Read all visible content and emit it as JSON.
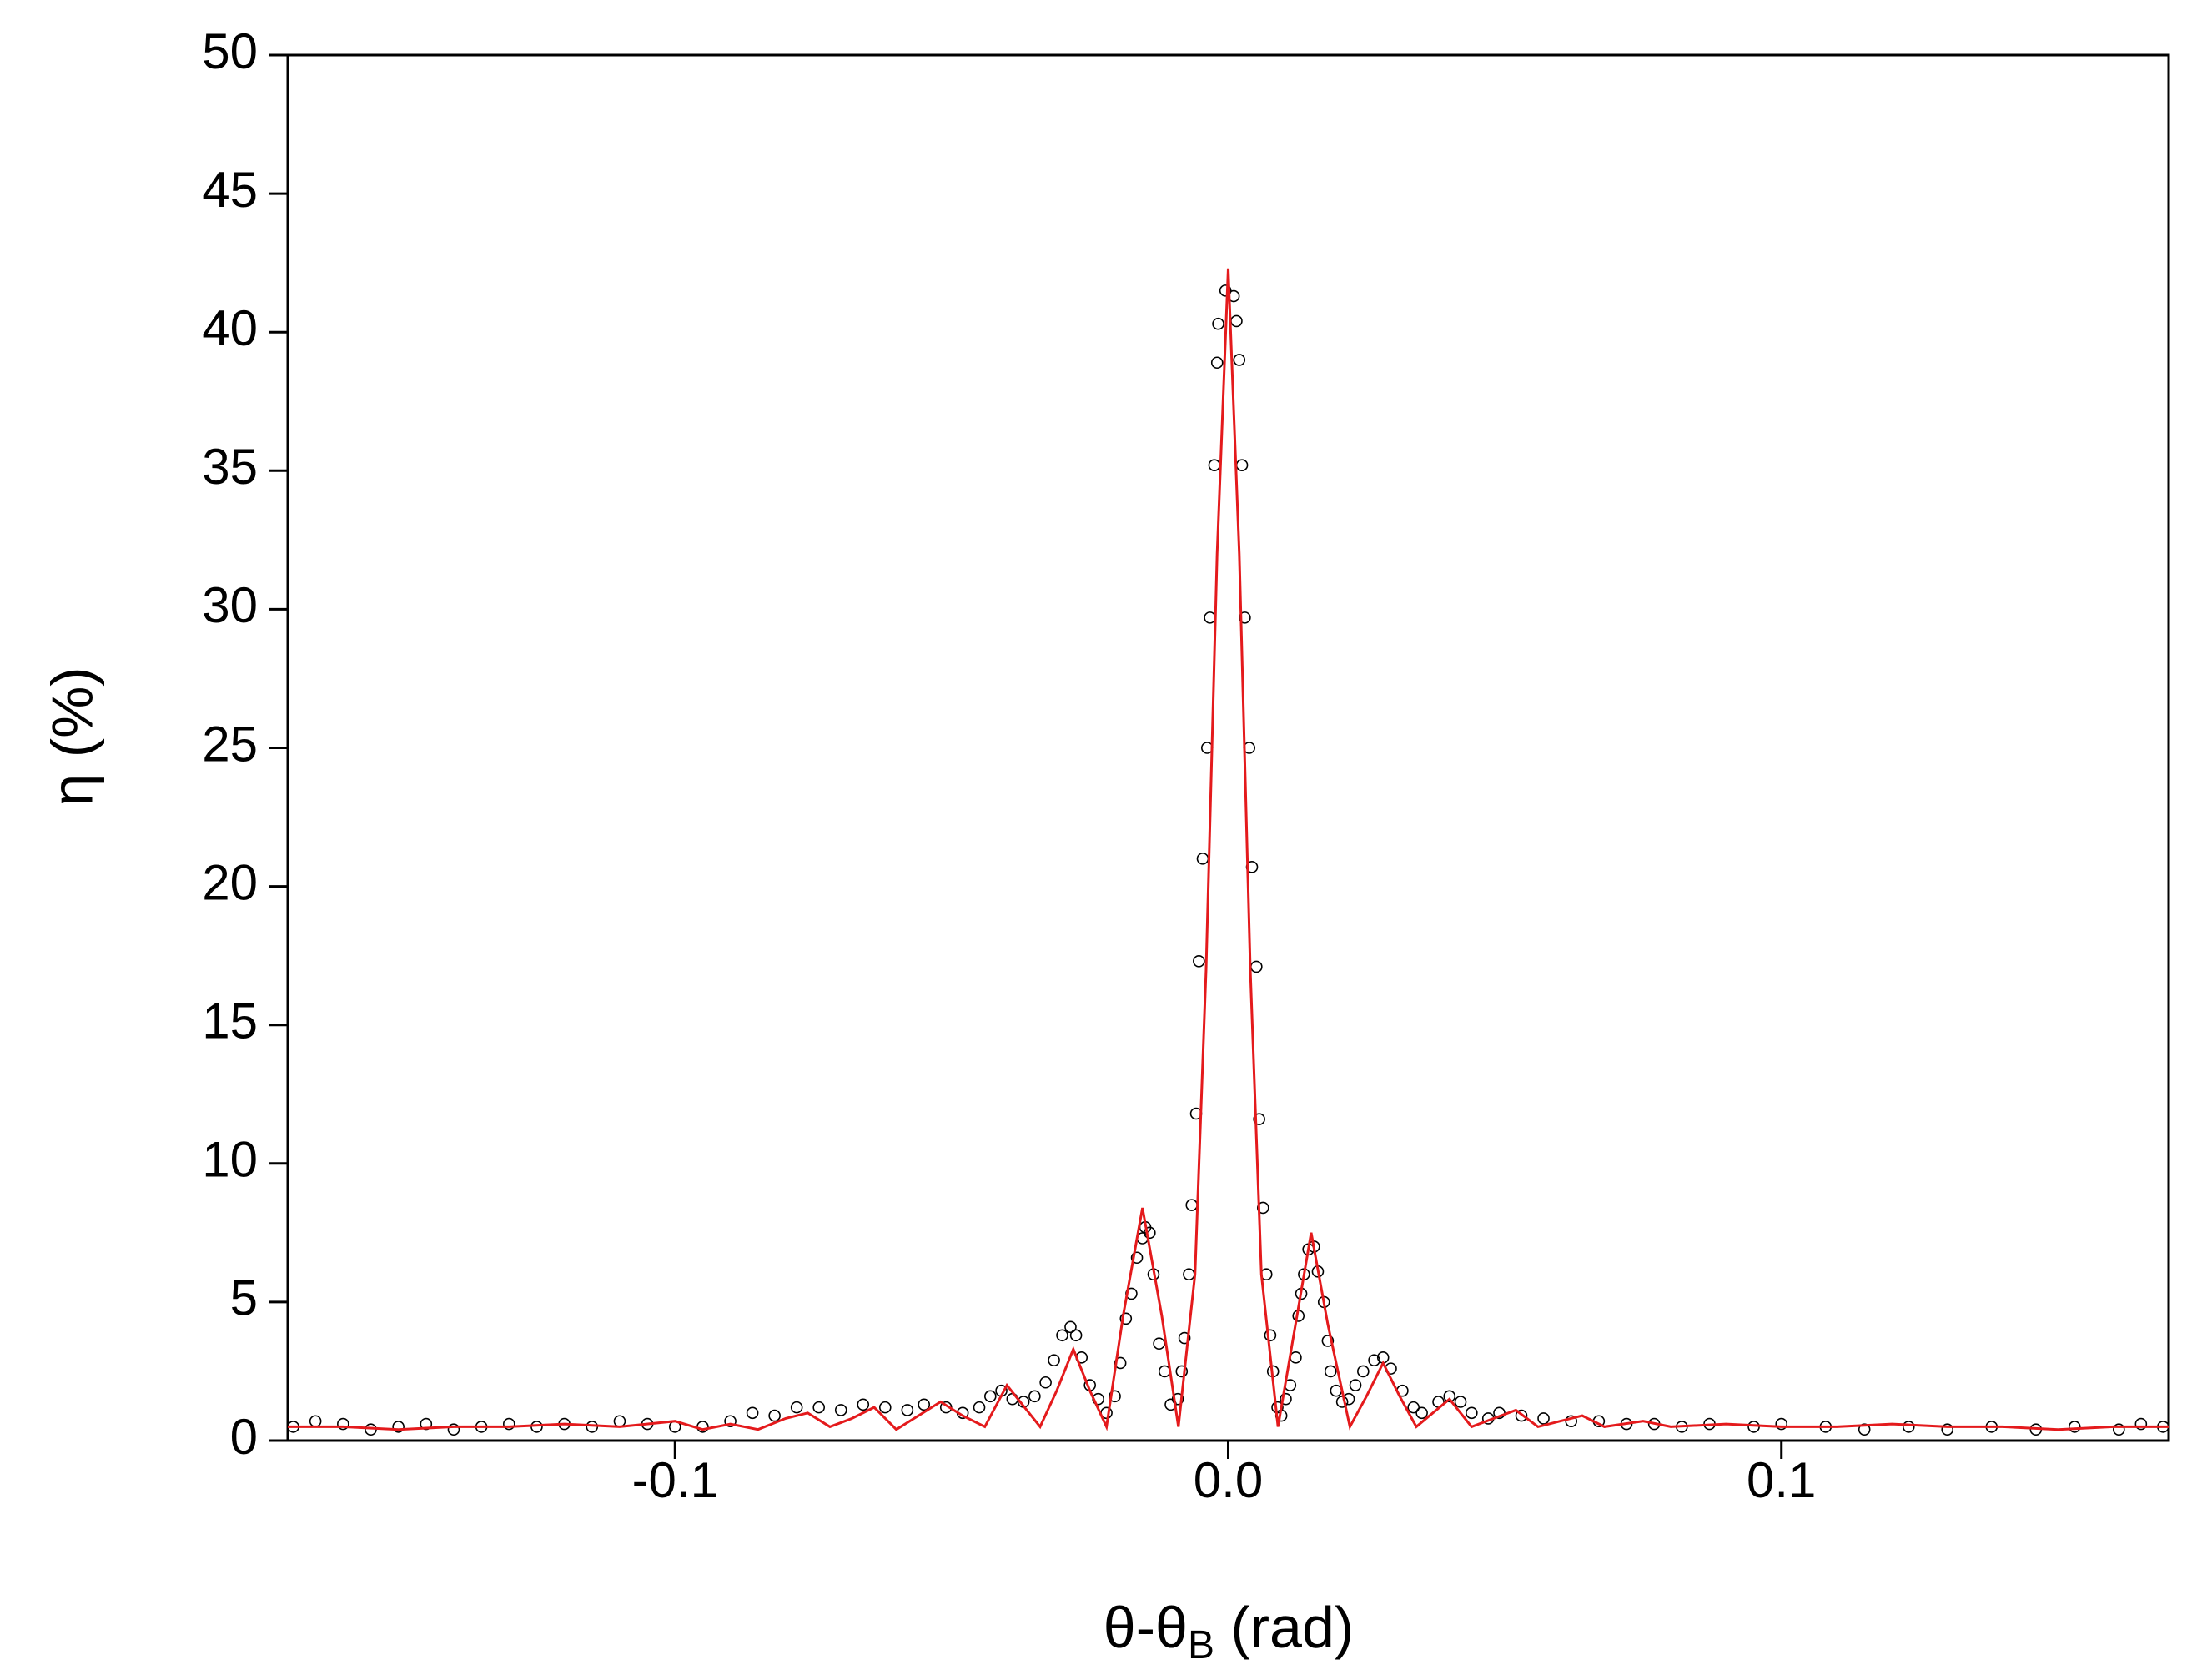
{
  "chart_data": {
    "type": "scatter",
    "xlabel": [
      "θ-θ",
      "B",
      " (rad)"
    ],
    "ylabel": "η (%)",
    "xlim": [
      -0.17,
      0.17
    ],
    "ylim": [
      0,
      50
    ],
    "xticks": [
      {
        "value": -0.1,
        "label": "-0.1"
      },
      {
        "value": 0,
        "label": "0.0"
      },
      {
        "value": 0.1,
        "label": "0.1"
      }
    ],
    "yticks": [
      0,
      5,
      10,
      15,
      20,
      25,
      30,
      35,
      40,
      45,
      50
    ],
    "series": [
      {
        "type": "scatter",
        "color": "#000000",
        "x": [
          -0.169,
          -0.165,
          -0.16,
          -0.155,
          -0.15,
          -0.145,
          -0.14,
          -0.135,
          -0.13,
          -0.125,
          -0.12,
          -0.115,
          -0.11,
          -0.105,
          -0.1,
          -0.095,
          -0.09,
          -0.086,
          -0.082,
          -0.078,
          -0.074,
          -0.07,
          -0.066,
          -0.062,
          -0.058,
          -0.055,
          -0.051,
          -0.048,
          -0.045,
          -0.043,
          -0.041,
          -0.039,
          -0.037,
          -0.035,
          -0.033,
          -0.0315,
          -0.03,
          -0.0285,
          -0.0275,
          -0.0265,
          -0.025,
          -0.0235,
          -0.022,
          -0.0205,
          -0.0195,
          -0.0185,
          -0.0175,
          -0.0165,
          -0.0155,
          -0.015,
          -0.0142,
          -0.0135,
          -0.0125,
          -0.0115,
          -0.0104,
          -0.0091,
          -0.0084,
          -0.0079,
          -0.0071,
          -0.0066,
          -0.0058,
          -0.0053,
          -0.0046,
          -0.0038,
          -0.0033,
          -0.0025,
          -0.002,
          -0.0018,
          -0.0005,
          0.001,
          0.0015,
          0.002,
          0.0025,
          0.003,
          0.0038,
          0.0043,
          0.0051,
          0.0056,
          0.0063,
          0.0069,
          0.0076,
          0.0081,
          0.0089,
          0.0096,
          0.0104,
          0.0112,
          0.0122,
          0.0127,
          0.0132,
          0.0137,
          0.0145,
          0.0155,
          0.0162,
          0.0173,
          0.018,
          0.0185,
          0.0195,
          0.0206,
          0.0218,
          0.023,
          0.0244,
          0.0264,
          0.028,
          0.0294,
          0.0315,
          0.0335,
          0.035,
          0.038,
          0.04,
          0.042,
          0.044,
          0.047,
          0.049,
          0.053,
          0.057,
          0.062,
          0.067,
          0.072,
          0.077,
          0.082,
          0.087,
          0.095,
          0.1,
          0.108,
          0.115,
          0.123,
          0.13,
          0.138,
          0.146,
          0.153,
          0.161,
          0.165,
          0.169
        ],
        "values": [
          0.5,
          0.7,
          0.6,
          0.4,
          0.5,
          0.6,
          0.4,
          0.5,
          0.6,
          0.5,
          0.6,
          0.5,
          0.7,
          0.6,
          0.5,
          0.5,
          0.7,
          1.0,
          0.9,
          1.2,
          1.2,
          1.1,
          1.3,
          1.2,
          1.1,
          1.3,
          1.2,
          1.0,
          1.2,
          1.6,
          1.8,
          1.5,
          1.4,
          1.6,
          2.1,
          2.9,
          3.8,
          4.1,
          3.8,
          3.0,
          2.0,
          1.5,
          1.0,
          1.6,
          2.8,
          4.4,
          5.3,
          6.6,
          7.3,
          7.7,
          7.5,
          6.0,
          3.5,
          2.5,
          1.3,
          1.5,
          2.5,
          3.7,
          6.0,
          8.5,
          11.8,
          17.3,
          21.0,
          25.0,
          29.7,
          35.2,
          38.9,
          40.3,
          41.5,
          41.3,
          40.4,
          39.0,
          35.2,
          29.7,
          25.0,
          20.7,
          17.1,
          11.6,
          8.4,
          6.0,
          3.8,
          2.5,
          1.2,
          0.9,
          1.5,
          2.0,
          3.0,
          4.5,
          5.3,
          6.0,
          6.9,
          7.0,
          6.1,
          5.0,
          3.6,
          2.5,
          1.8,
          1.4,
          1.5,
          2.0,
          2.5,
          2.9,
          3.0,
          2.6,
          1.8,
          1.2,
          1.0,
          1.4,
          1.6,
          1.4,
          1.0,
          0.8,
          1.0,
          0.9,
          0.8,
          0.7,
          0.7,
          0.6,
          0.6,
          0.5,
          0.6,
          0.5,
          0.6,
          0.5,
          0.4,
          0.5,
          0.4,
          0.5,
          0.4,
          0.5,
          0.4,
          0.6,
          0.5
        ]
      },
      {
        "type": "line",
        "color": "#e41a1c",
        "x": [
          -0.17,
          -0.16,
          -0.15,
          -0.14,
          -0.13,
          -0.12,
          -0.11,
          -0.1,
          -0.095,
          -0.09,
          -0.085,
          -0.08,
          -0.076,
          -0.072,
          -0.068,
          -0.064,
          -0.06,
          -0.056,
          -0.052,
          -0.048,
          -0.044,
          -0.04,
          -0.036,
          -0.034,
          -0.031,
          -0.028,
          -0.025,
          -0.022,
          -0.019,
          -0.0155,
          -0.012,
          -0.009,
          -0.006,
          -0.004,
          -0.002,
          0,
          0.002,
          0.004,
          0.006,
          0.009,
          0.012,
          0.015,
          0.018,
          0.022,
          0.025,
          0.028,
          0.031,
          0.034,
          0.037,
          0.04,
          0.044,
          0.048,
          0.052,
          0.056,
          0.06,
          0.064,
          0.068,
          0.075,
          0.08,
          0.09,
          0.1,
          0.11,
          0.12,
          0.13,
          0.14,
          0.15,
          0.16,
          0.17
        ],
        "values": [
          0.5,
          0.5,
          0.4,
          0.5,
          0.5,
          0.6,
          0.5,
          0.7,
          0.4,
          0.6,
          0.4,
          0.8,
          1.0,
          0.5,
          0.8,
          1.2,
          0.4,
          0.9,
          1.4,
          0.9,
          0.5,
          2.0,
          1.0,
          0.5,
          1.8,
          3.3,
          1.8,
          0.5,
          4.5,
          8.4,
          4.5,
          0.5,
          6.0,
          17.0,
          32.0,
          42.3,
          32.0,
          17.0,
          6.0,
          0.5,
          4.0,
          7.5,
          4.2,
          0.5,
          1.6,
          2.8,
          1.6,
          0.5,
          1.0,
          1.5,
          0.5,
          0.8,
          1.1,
          0.5,
          0.7,
          0.9,
          0.5,
          0.7,
          0.5,
          0.6,
          0.5,
          0.5,
          0.6,
          0.5,
          0.5,
          0.4,
          0.5,
          0.5
        ]
      }
    ]
  }
}
